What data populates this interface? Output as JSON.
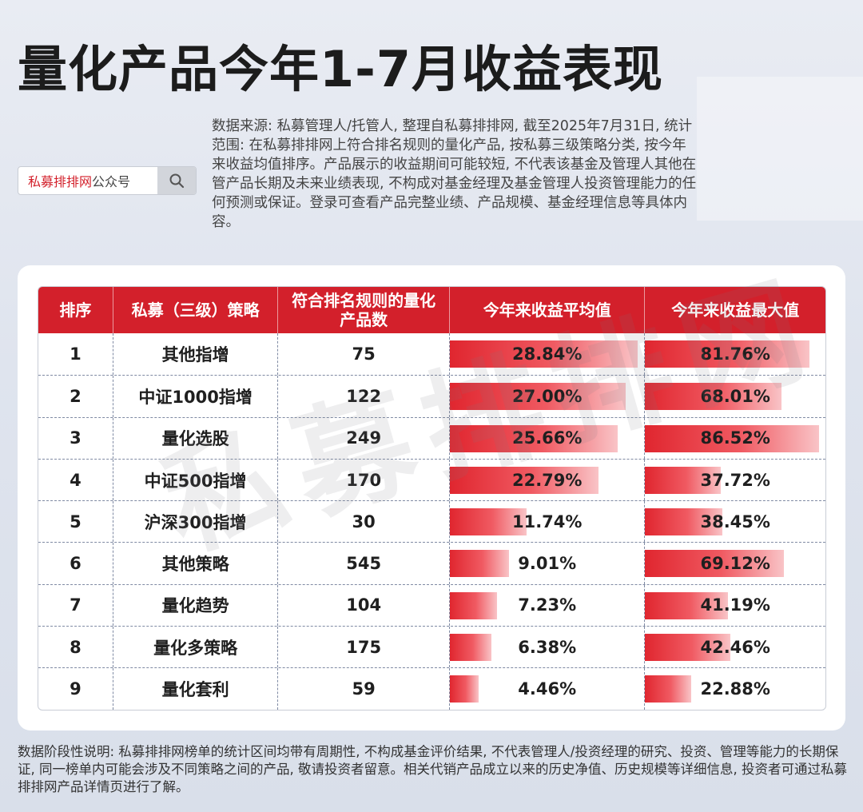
{
  "title": "量化产品今年1-7月收益表现",
  "search": {
    "brand": "私募排排网",
    "suffix": "公众号",
    "icon": "search-icon"
  },
  "source_note": "数据来源: 私募管理人/托管人, 整理自私募排排网, 截至2025年7月31日, 统计范围: 在私募排排网上符合排名规则的量化产品, 按私募三级策略分类, 按今年来收益均值排序。产品展示的收益期间可能较短, 不代表该基金及管理人其他在管产品长期及未来业绩表现, 不构成对基金经理及基金管理人投资管理能力的任何预测或保证。登录可查看产品完整业绩、产品规模、基金经理信息等具体内容。",
  "watermark": "私募排排网",
  "footnote": "数据阶段性说明: 私募排排网榜单的统计区间均带有周期性, 不构成基金评价结果, 不代表管理人/投资经理的研究、投资、管理等能力的长期保证, 同一榜单内可能会涉及不同策略之间的产品, 敬请投资者留意。相关代销产品成立以来的历史净值、历史规模等详细信息, 投资者可通过私募排排网产品详情页进行了解。",
  "colors": {
    "accent": "#d3202b"
  },
  "chart_data": {
    "type": "table",
    "columns": [
      "排序",
      "私募（三级）策略",
      "符合排名规则的量化产品数",
      "今年来收益平均值",
      "今年来收益最大值"
    ],
    "rows": [
      {
        "rank": "1",
        "strategy": "其他指增",
        "count": "75",
        "avg": 28.84,
        "avg_label": "28.84%",
        "max": 81.76,
        "max_label": "81.76%"
      },
      {
        "rank": "2",
        "strategy": "中证1000指增",
        "count": "122",
        "avg": 27.0,
        "avg_label": "27.00%",
        "max": 68.01,
        "max_label": "68.01%"
      },
      {
        "rank": "3",
        "strategy": "量化选股",
        "count": "249",
        "avg": 25.66,
        "avg_label": "25.66%",
        "max": 86.52,
        "max_label": "86.52%"
      },
      {
        "rank": "4",
        "strategy": "中证500指增",
        "count": "170",
        "avg": 22.79,
        "avg_label": "22.79%",
        "max": 37.72,
        "max_label": "37.72%"
      },
      {
        "rank": "5",
        "strategy": "沪深300指增",
        "count": "30",
        "avg": 11.74,
        "avg_label": "11.74%",
        "max": 38.45,
        "max_label": "38.45%"
      },
      {
        "rank": "6",
        "strategy": "其他策略",
        "count": "545",
        "avg": 9.01,
        "avg_label": "9.01%",
        "max": 69.12,
        "max_label": "69.12%"
      },
      {
        "rank": "7",
        "strategy": "量化趋势",
        "count": "104",
        "avg": 7.23,
        "avg_label": "7.23%",
        "max": 41.19,
        "max_label": "41.19%"
      },
      {
        "rank": "8",
        "strategy": "量化多策略",
        "count": "175",
        "avg": 6.38,
        "avg_label": "6.38%",
        "max": 42.46,
        "max_label": "42.46%"
      },
      {
        "rank": "9",
        "strategy": "量化套利",
        "count": "59",
        "avg": 4.46,
        "avg_label": "4.46%",
        "max": 22.88,
        "max_label": "22.88%"
      }
    ]
  }
}
